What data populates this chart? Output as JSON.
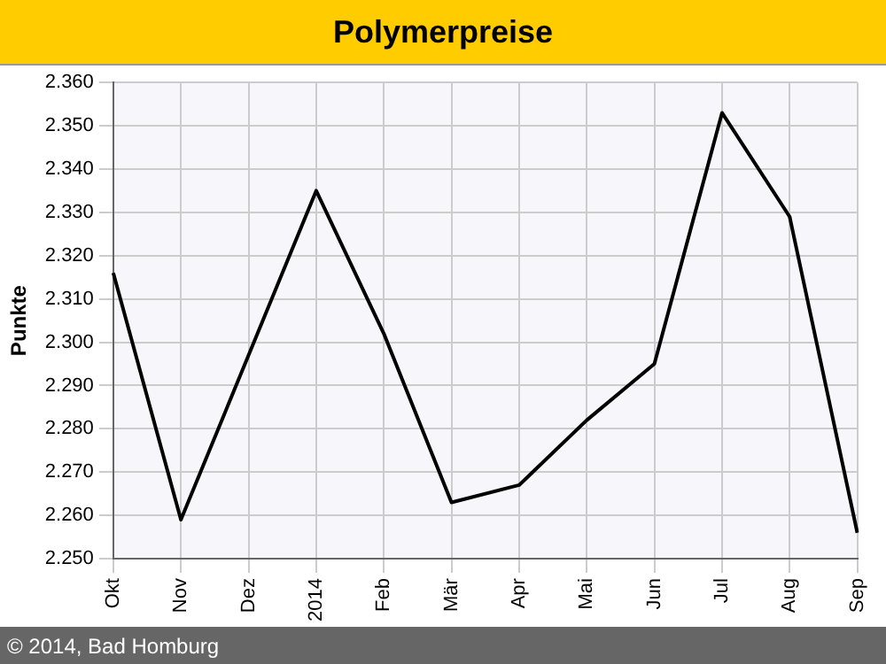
{
  "chart_data": {
    "type": "line",
    "title": "Polymerpreise",
    "ylabel": "Punkte",
    "categories": [
      "Okt",
      "Nov",
      "Dez",
      "2014",
      "Feb",
      "Mär",
      "Apr",
      "Mai",
      "Jun",
      "Jul",
      "Aug",
      "Sep"
    ],
    "series": [
      {
        "color": "#000000",
        "values": [
          2316,
          2259,
          2297,
          2335,
          2302,
          2263,
          2267,
          2282,
          2295,
          2353,
          2329,
          2256
        ]
      }
    ],
    "ylim": [
      2250,
      2360
    ],
    "yticks": [
      {
        "value": 2250,
        "label": "2.250"
      },
      {
        "value": 2260,
        "label": "2.260"
      },
      {
        "value": 2270,
        "label": "2.270"
      },
      {
        "value": 2280,
        "label": "2.280"
      },
      {
        "value": 2290,
        "label": "2.290"
      },
      {
        "value": 2300,
        "label": "2.300"
      },
      {
        "value": 2310,
        "label": "2.310"
      },
      {
        "value": 2320,
        "label": "2.320"
      },
      {
        "value": 2330,
        "label": "2.330"
      },
      {
        "value": 2340,
        "label": "2.340"
      },
      {
        "value": 2350,
        "label": "2.350"
      },
      {
        "value": 2360,
        "label": "2.360"
      }
    ],
    "grid": true,
    "marker": "none",
    "line_style": "solid",
    "annotations": [
      "© 2014, Bad Homburg"
    ]
  }
}
